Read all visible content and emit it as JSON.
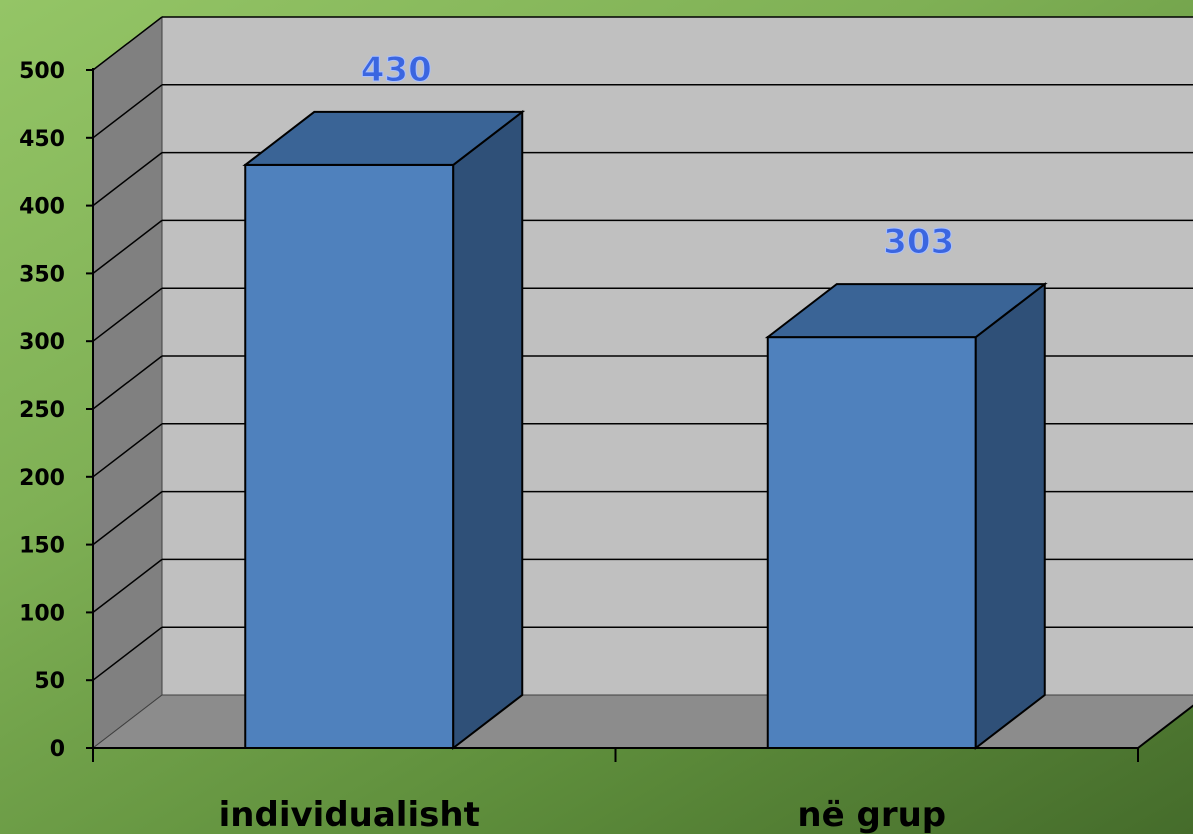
{
  "chart_data": {
    "type": "bar",
    "style": "3d",
    "categories": [
      "individualisht",
      "në grup"
    ],
    "values": [
      430,
      303
    ],
    "data_labels": [
      "430",
      "303"
    ],
    "ylim": [
      0,
      500
    ],
    "y_ticks": [
      0,
      50,
      100,
      150,
      200,
      250,
      300,
      350,
      400,
      450,
      500
    ],
    "y_tick_labels": [
      "0",
      "50",
      "100",
      "150",
      "200",
      "250",
      "300",
      "350",
      "400",
      "450",
      "500"
    ],
    "grid": true,
    "legend": "none",
    "colors": {
      "bar_front": "#4f81bd",
      "bar_side": "#2f5078",
      "bar_top": "#3a6496",
      "wall": "#c0c0c0",
      "side_wall": "#808080",
      "floor": "#8c8c8c",
      "data_label": "#3b66e0"
    }
  }
}
